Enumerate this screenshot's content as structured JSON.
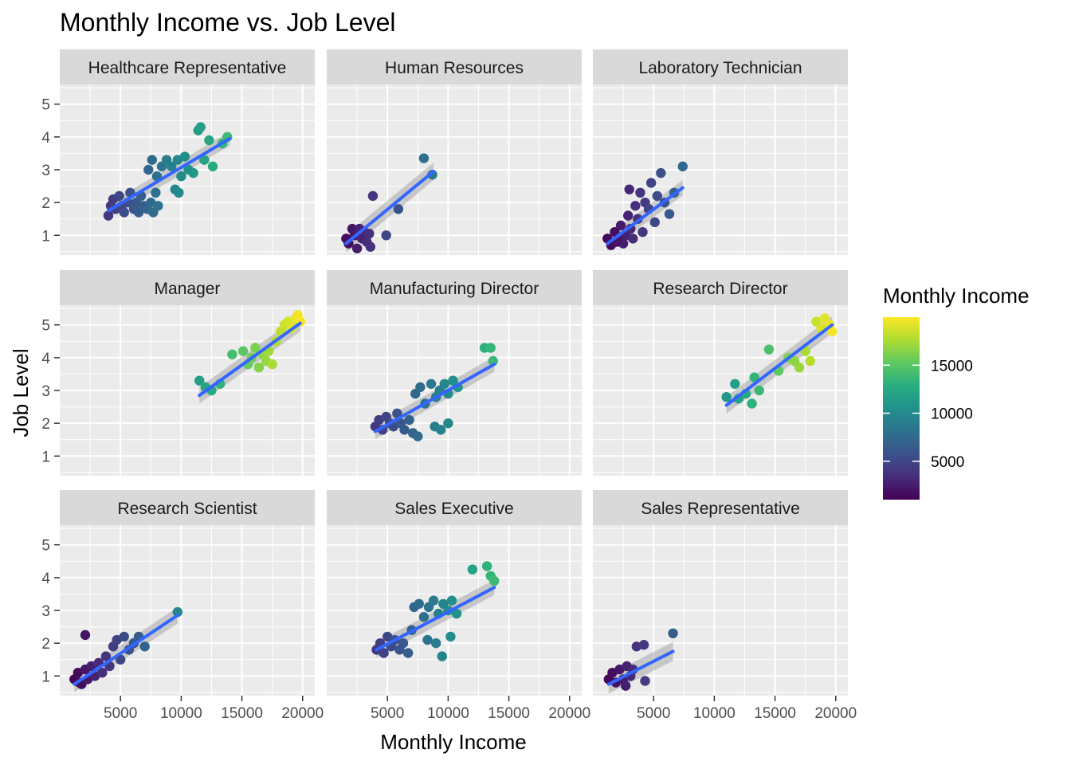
{
  "chart_data": {
    "type": "scatter",
    "title": "Monthly Income vs. Job Level",
    "xlabel": "Monthly Income",
    "ylabel": "Job Level",
    "x_ticks": [
      5000,
      10000,
      15000,
      20000
    ],
    "y_ticks": [
      1,
      2,
      3,
      4,
      5
    ],
    "xlim": [
      0,
      21000
    ],
    "ylim": [
      0.4,
      5.6
    ],
    "grid": true,
    "facet_by": "Job Role",
    "legend": {
      "title": "Monthly Income",
      "position": "right",
      "type": "colorbar",
      "palette": "viridis",
      "range": [
        1000,
        20000
      ],
      "ticks": [
        5000,
        10000,
        15000
      ]
    },
    "colors": {
      "panel_bg": "#ebebeb",
      "strip_bg": "#d9d9d9",
      "grid_major": "#ffffff",
      "smooth_line": "#3366ff",
      "ribbon": "#999999"
    },
    "smooth_method": "lm",
    "panels": [
      {
        "name": "Healthcare Representative",
        "trend": {
          "x": [
            4000,
            14000
          ],
          "y": [
            1.75,
            3.95
          ]
        },
        "points": [
          [
            4000,
            1.6
          ],
          [
            4200,
            1.9
          ],
          [
            4400,
            2.1
          ],
          [
            4600,
            1.8
          ],
          [
            4900,
            2.2
          ],
          [
            5100,
            1.9
          ],
          [
            5300,
            1.7
          ],
          [
            5600,
            2.0
          ],
          [
            5800,
            2.3
          ],
          [
            6100,
            1.8
          ],
          [
            6300,
            2.0
          ],
          [
            6500,
            1.7
          ],
          [
            6700,
            2.2
          ],
          [
            6900,
            1.9
          ],
          [
            7200,
            1.8
          ],
          [
            7500,
            2.0
          ],
          [
            7700,
            1.7
          ],
          [
            7900,
            2.3
          ],
          [
            8100,
            1.9
          ],
          [
            7300,
            3.0
          ],
          [
            7600,
            3.3
          ],
          [
            8000,
            2.8
          ],
          [
            8400,
            3.1
          ],
          [
            8800,
            3.3
          ],
          [
            9200,
            3.1
          ],
          [
            9500,
            2.4
          ],
          [
            9700,
            3.3
          ],
          [
            10000,
            2.8
          ],
          [
            10300,
            3.4
          ],
          [
            10600,
            3.0
          ],
          [
            9800,
            2.3
          ],
          [
            11000,
            2.9
          ],
          [
            11400,
            4.2
          ],
          [
            11600,
            4.3
          ],
          [
            11900,
            3.3
          ],
          [
            12300,
            3.9
          ],
          [
            12600,
            3.1
          ],
          [
            13400,
            3.8
          ],
          [
            13800,
            4.0
          ]
        ]
      },
      {
        "name": "Human Resources",
        "trend": {
          "x": [
            1600,
            8800
          ],
          "y": [
            0.75,
            2.95
          ]
        },
        "points": [
          [
            1600,
            0.9
          ],
          [
            1800,
            0.75
          ],
          [
            2100,
            1.2
          ],
          [
            2300,
            1.0
          ],
          [
            2500,
            0.6
          ],
          [
            2700,
            1.2
          ],
          [
            2900,
            0.9
          ],
          [
            3100,
            1.1
          ],
          [
            3300,
            0.8
          ],
          [
            3600,
            0.65
          ],
          [
            3500,
            1.05
          ],
          [
            3800,
            2.2
          ],
          [
            4900,
            1.0
          ],
          [
            5900,
            1.8
          ],
          [
            8000,
            3.35
          ],
          [
            8700,
            2.85
          ]
        ]
      },
      {
        "name": "Laboratory Technician",
        "trend": {
          "x": [
            1200,
            7400
          ],
          "y": [
            0.75,
            2.45
          ]
        },
        "points": [
          [
            1200,
            0.9
          ],
          [
            1500,
            0.7
          ],
          [
            1800,
            1.1
          ],
          [
            2000,
            0.8
          ],
          [
            2300,
            1.3
          ],
          [
            2500,
            0.75
          ],
          [
            2700,
            1.0
          ],
          [
            2900,
            1.6
          ],
          [
            3100,
            1.2
          ],
          [
            3300,
            0.9
          ],
          [
            3500,
            1.9
          ],
          [
            3700,
            1.5
          ],
          [
            3900,
            2.3
          ],
          [
            4100,
            1.1
          ],
          [
            4300,
            2.0
          ],
          [
            4600,
            1.8
          ],
          [
            4800,
            2.6
          ],
          [
            5100,
            1.4
          ],
          [
            5300,
            2.2
          ],
          [
            5600,
            2.9
          ],
          [
            5900,
            2.0
          ],
          [
            6300,
            1.65
          ],
          [
            6700,
            2.3
          ],
          [
            7400,
            3.1
          ],
          [
            3000,
            2.4
          ],
          [
            2100,
            0.85
          ]
        ]
      },
      {
        "name": "Manager",
        "trend": {
          "x": [
            11500,
            19800
          ],
          "y": [
            2.85,
            5.05
          ]
        },
        "points": [
          [
            11500,
            3.3
          ],
          [
            12000,
            3.1
          ],
          [
            12500,
            3.0
          ],
          [
            13200,
            3.2
          ],
          [
            14200,
            4.1
          ],
          [
            15100,
            4.2
          ],
          [
            15500,
            3.8
          ],
          [
            15800,
            4.0
          ],
          [
            16100,
            4.3
          ],
          [
            16400,
            3.7
          ],
          [
            16700,
            4.1
          ],
          [
            17000,
            3.9
          ],
          [
            17200,
            4.2
          ],
          [
            17500,
            3.8
          ],
          [
            17800,
            4.5
          ],
          [
            18200,
            4.8
          ],
          [
            18500,
            5.0
          ],
          [
            18800,
            5.1
          ],
          [
            19100,
            4.9
          ],
          [
            19400,
            5.2
          ],
          [
            19600,
            5.3
          ],
          [
            19800,
            5.1
          ]
        ]
      },
      {
        "name": "Manufacturing Director",
        "trend": {
          "x": [
            4000,
            13800
          ],
          "y": [
            1.75,
            3.8
          ]
        },
        "points": [
          [
            4000,
            1.9
          ],
          [
            4300,
            2.1
          ],
          [
            4600,
            1.8
          ],
          [
            4900,
            2.2
          ],
          [
            5200,
            2.0
          ],
          [
            5500,
            1.9
          ],
          [
            5800,
            2.3
          ],
          [
            6100,
            2.0
          ],
          [
            6400,
            1.8
          ],
          [
            6800,
            2.1
          ],
          [
            7100,
            1.7
          ],
          [
            7500,
            1.6
          ],
          [
            7300,
            2.9
          ],
          [
            7700,
            3.1
          ],
          [
            8100,
            2.6
          ],
          [
            8600,
            3.2
          ],
          [
            9000,
            2.8
          ],
          [
            9300,
            3.0
          ],
          [
            9700,
            3.2
          ],
          [
            10000,
            2.9
          ],
          [
            10400,
            3.3
          ],
          [
            10800,
            3.1
          ],
          [
            8900,
            1.9
          ],
          [
            9400,
            1.8
          ],
          [
            10000,
            2.0
          ],
          [
            13000,
            4.3
          ],
          [
            13500,
            4.3
          ],
          [
            13700,
            3.9
          ]
        ]
      },
      {
        "name": "Research Director",
        "trend": {
          "x": [
            11000,
            19700
          ],
          "y": [
            2.55,
            5.0
          ]
        },
        "points": [
          [
            11000,
            2.8
          ],
          [
            11700,
            3.2
          ],
          [
            12000,
            2.75
          ],
          [
            12600,
            2.9
          ],
          [
            13100,
            2.6
          ],
          [
            13300,
            3.4
          ],
          [
            13700,
            3.0
          ],
          [
            14500,
            4.25
          ],
          [
            15300,
            3.6
          ],
          [
            16100,
            4.0
          ],
          [
            16600,
            3.9
          ],
          [
            17000,
            3.7
          ],
          [
            17500,
            4.2
          ],
          [
            17900,
            3.9
          ],
          [
            18400,
            5.1
          ],
          [
            18800,
            4.9
          ],
          [
            19100,
            5.2
          ],
          [
            19500,
            5.0
          ],
          [
            19700,
            4.8
          ]
        ]
      },
      {
        "name": "Research Scientist",
        "trend": {
          "x": [
            1200,
            9700
          ],
          "y": [
            0.75,
            2.85
          ]
        },
        "points": [
          [
            1200,
            0.9
          ],
          [
            1500,
            1.1
          ],
          [
            1800,
            0.75
          ],
          [
            2100,
            1.2
          ],
          [
            2300,
            0.9
          ],
          [
            2600,
            1.3
          ],
          [
            2900,
            1.0
          ],
          [
            3200,
            1.4
          ],
          [
            3500,
            1.1
          ],
          [
            3800,
            1.6
          ],
          [
            4100,
            1.3
          ],
          [
            4400,
            1.9
          ],
          [
            4700,
            2.1
          ],
          [
            5000,
            1.5
          ],
          [
            5300,
            2.2
          ],
          [
            5700,
            1.8
          ],
          [
            6100,
            2.0
          ],
          [
            6500,
            2.2
          ],
          [
            7000,
            1.9
          ],
          [
            2100,
            2.25
          ],
          [
            9700,
            2.95
          ],
          [
            1600,
            0.8
          ]
        ]
      },
      {
        "name": "Sales Executive",
        "trend": {
          "x": [
            4100,
            13800
          ],
          "y": [
            1.8,
            3.7
          ]
        },
        "points": [
          [
            4100,
            1.8
          ],
          [
            4400,
            2.0
          ],
          [
            4700,
            1.7
          ],
          [
            5000,
            2.2
          ],
          [
            5300,
            1.9
          ],
          [
            5600,
            2.1
          ],
          [
            6000,
            1.8
          ],
          [
            6300,
            2.0
          ],
          [
            6700,
            1.7
          ],
          [
            7000,
            2.4
          ],
          [
            7200,
            3.1
          ],
          [
            7600,
            3.2
          ],
          [
            8000,
            2.8
          ],
          [
            8400,
            3.1
          ],
          [
            8800,
            3.3
          ],
          [
            9200,
            2.9
          ],
          [
            9600,
            3.2
          ],
          [
            10000,
            3.0
          ],
          [
            10300,
            3.3
          ],
          [
            10700,
            2.9
          ],
          [
            8300,
            2.1
          ],
          [
            9000,
            2.0
          ],
          [
            9500,
            1.6
          ],
          [
            10200,
            2.2
          ],
          [
            12000,
            4.25
          ],
          [
            13200,
            4.35
          ],
          [
            13500,
            4.05
          ],
          [
            13800,
            3.9
          ]
        ]
      },
      {
        "name": "Sales Representative",
        "trend": {
          "x": [
            1300,
            6600
          ],
          "y": [
            0.75,
            1.75
          ]
        },
        "points": [
          [
            1300,
            0.9
          ],
          [
            1600,
            1.1
          ],
          [
            1900,
            0.8
          ],
          [
            2200,
            1.2
          ],
          [
            2500,
            0.9
          ],
          [
            2800,
            1.3
          ],
          [
            3100,
            1.0
          ],
          [
            3300,
            1.2
          ],
          [
            2700,
            0.7
          ],
          [
            3600,
            1.9
          ],
          [
            4200,
            1.95
          ],
          [
            4300,
            0.85
          ],
          [
            6600,
            2.3
          ]
        ]
      }
    ]
  }
}
